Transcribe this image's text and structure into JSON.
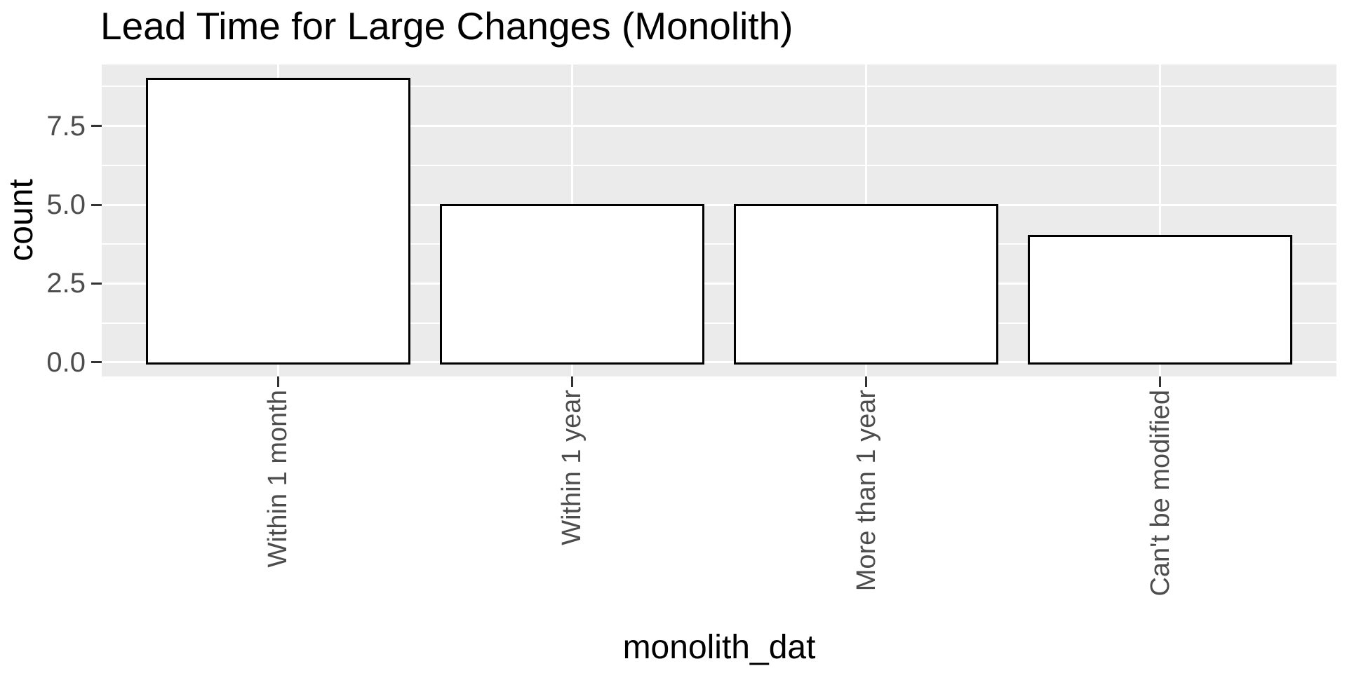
{
  "chart_data": {
    "type": "bar",
    "title": "Lead Time for Large Changes (Monolith)",
    "xlabel": "monolith_dat",
    "ylabel": "count",
    "categories": [
      "Within 1 month",
      "Within 1 year",
      "More than 1 year",
      "Can't be modified"
    ],
    "values": [
      9,
      5,
      5,
      4
    ],
    "y_major_ticks": [
      0,
      2.5,
      5,
      7.5
    ],
    "y_tick_labels": [
      "0.0",
      "2.5",
      "5.0",
      "7.5"
    ],
    "y_minor_ticks": [
      1.25,
      3.75,
      6.25,
      8.75
    ],
    "ylim": [
      -0.45,
      9.45
    ],
    "xlim_units": [
      0.4,
      4.6
    ],
    "bar_width_units": 0.9,
    "grid": {
      "horizontal": "major+minor",
      "vertical": "major at category centers"
    },
    "legend_position": "none",
    "colors": {
      "panel_background": "#EBEBEB",
      "gridline": "#FFFFFF",
      "bar_fill": "#FFFFFF",
      "bar_stroke": "#000000",
      "tick_mark": "#333333",
      "tick_label": "#4D4D4D",
      "title": "#000000",
      "axis_title": "#000000",
      "figure_background": "#FFFFFF"
    }
  }
}
